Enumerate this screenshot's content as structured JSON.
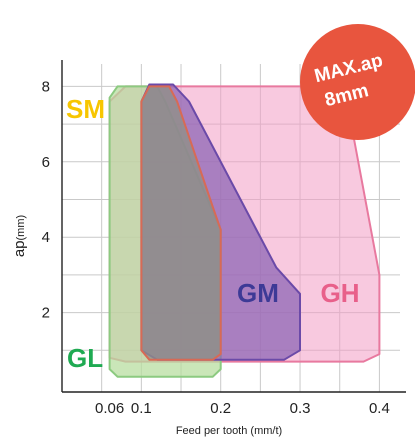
{
  "chart_data": {
    "type": "area",
    "xlabel": "Feed per tooth (mm/t)",
    "ylabel": "ap",
    "ylabel_unit": "(mm)",
    "x_ticks": [
      "0.06",
      "0.1",
      "0.2",
      "0.3",
      "0.4"
    ],
    "x_tick_values": [
      0.06,
      0.1,
      0.2,
      0.3,
      0.4
    ],
    "y_ticks": [
      "2",
      "4",
      "6",
      "8"
    ],
    "y_tick_values": [
      2,
      4,
      6,
      8
    ],
    "xlim": [
      0.0,
      0.43
    ],
    "ylim": [
      0,
      8.6
    ],
    "grid": true,
    "badge": {
      "line1": "MAX.ap",
      "line2": "8mm",
      "color": "#e8553e"
    },
    "regions": [
      {
        "name": "GH",
        "fill": "#f29cc4",
        "stroke": "#e8799f",
        "label_color": "#e8608a",
        "points": [
          [
            0.06,
            0.8
          ],
          [
            0.06,
            7.6
          ],
          [
            0.08,
            8.0
          ],
          [
            0.33,
            8.0
          ],
          [
            0.36,
            7.5
          ],
          [
            0.4,
            3.0
          ],
          [
            0.4,
            0.9
          ],
          [
            0.38,
            0.7
          ],
          [
            0.08,
            0.7
          ]
        ]
      },
      {
        "name": "GL",
        "fill": "#b6dc9c",
        "stroke": "#8cca80",
        "label_color": "#1faa52",
        "points": [
          [
            0.06,
            0.5
          ],
          [
            0.06,
            7.7
          ],
          [
            0.07,
            8.0
          ],
          [
            0.12,
            8.0
          ],
          [
            0.13,
            7.6
          ],
          [
            0.2,
            4.2
          ],
          [
            0.2,
            0.5
          ],
          [
            0.19,
            0.3
          ],
          [
            0.07,
            0.3
          ]
        ]
      },
      {
        "name": "GM",
        "fill": "#8a63b4",
        "stroke": "#6b4aa8",
        "label_color": "#3d3a96",
        "points": [
          [
            0.1,
            1.0
          ],
          [
            0.1,
            7.6
          ],
          [
            0.11,
            8.05
          ],
          [
            0.14,
            8.05
          ],
          [
            0.16,
            7.6
          ],
          [
            0.27,
            3.2
          ],
          [
            0.3,
            2.5
          ],
          [
            0.3,
            1.0
          ],
          [
            0.28,
            0.75
          ],
          [
            0.12,
            0.75
          ]
        ]
      },
      {
        "name": "SM",
        "fill": "#8f8f86",
        "stroke": "#d86a55",
        "label_color": "#f7c600",
        "points": [
          [
            0.1,
            1.0
          ],
          [
            0.1,
            7.6
          ],
          [
            0.11,
            8.0
          ],
          [
            0.135,
            8.0
          ],
          [
            0.145,
            7.6
          ],
          [
            0.19,
            4.8
          ],
          [
            0.2,
            4.2
          ],
          [
            0.2,
            0.9
          ],
          [
            0.19,
            0.75
          ],
          [
            0.11,
            0.75
          ]
        ]
      }
    ]
  }
}
